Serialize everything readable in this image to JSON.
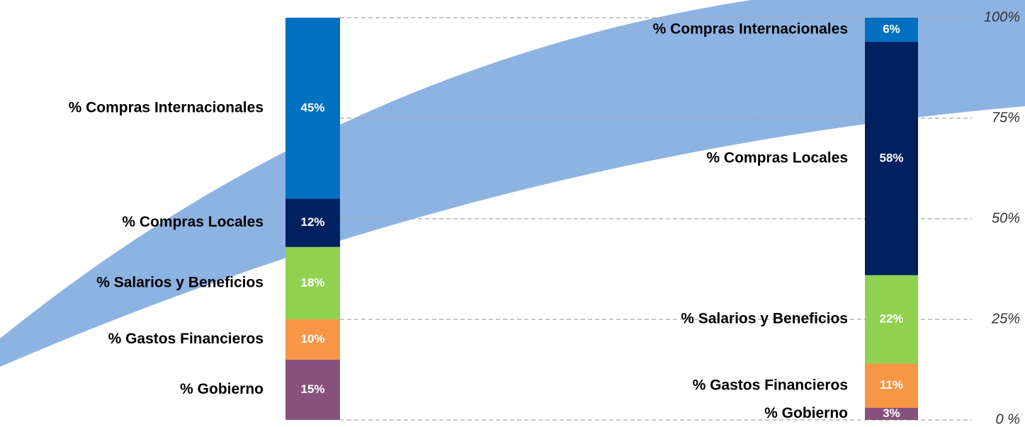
{
  "chart_data": {
    "type": "stacked_bar",
    "categories": [
      null,
      null
    ],
    "series": [
      {
        "name": "% Gobierno",
        "color": "#86517d",
        "values": [
          15,
          3
        ],
        "value_labels": [
          "15%",
          "3%"
        ]
      },
      {
        "name": "% Gastos Financieros",
        "color": "#f79646",
        "values": [
          10,
          11
        ],
        "value_labels": [
          "10%",
          "11%"
        ]
      },
      {
        "name": "% Salarios y Beneficios",
        "color": "#92d050",
        "values": [
          18,
          22
        ],
        "value_labels": [
          "18%",
          "22%"
        ]
      },
      {
        "name": "% Compras Locales",
        "color": "#002060",
        "values": [
          12,
          58
        ],
        "value_labels": [
          "12%",
          "58%"
        ]
      },
      {
        "name": "% Compras Internacionales",
        "color": "#0070c0",
        "values": [
          45,
          6
        ],
        "value_labels": [
          "45%",
          "6%"
        ]
      }
    ],
    "ylim": [
      0,
      100
    ],
    "yticks": [
      {
        "value": 0,
        "label": "0 %"
      },
      {
        "value": 25,
        "label": "25%"
      },
      {
        "value": 50,
        "label": "50%"
      },
      {
        "value": 75,
        "label": "75%"
      },
      {
        "value": 100,
        "label": "100%"
      }
    ],
    "grid": true
  }
}
